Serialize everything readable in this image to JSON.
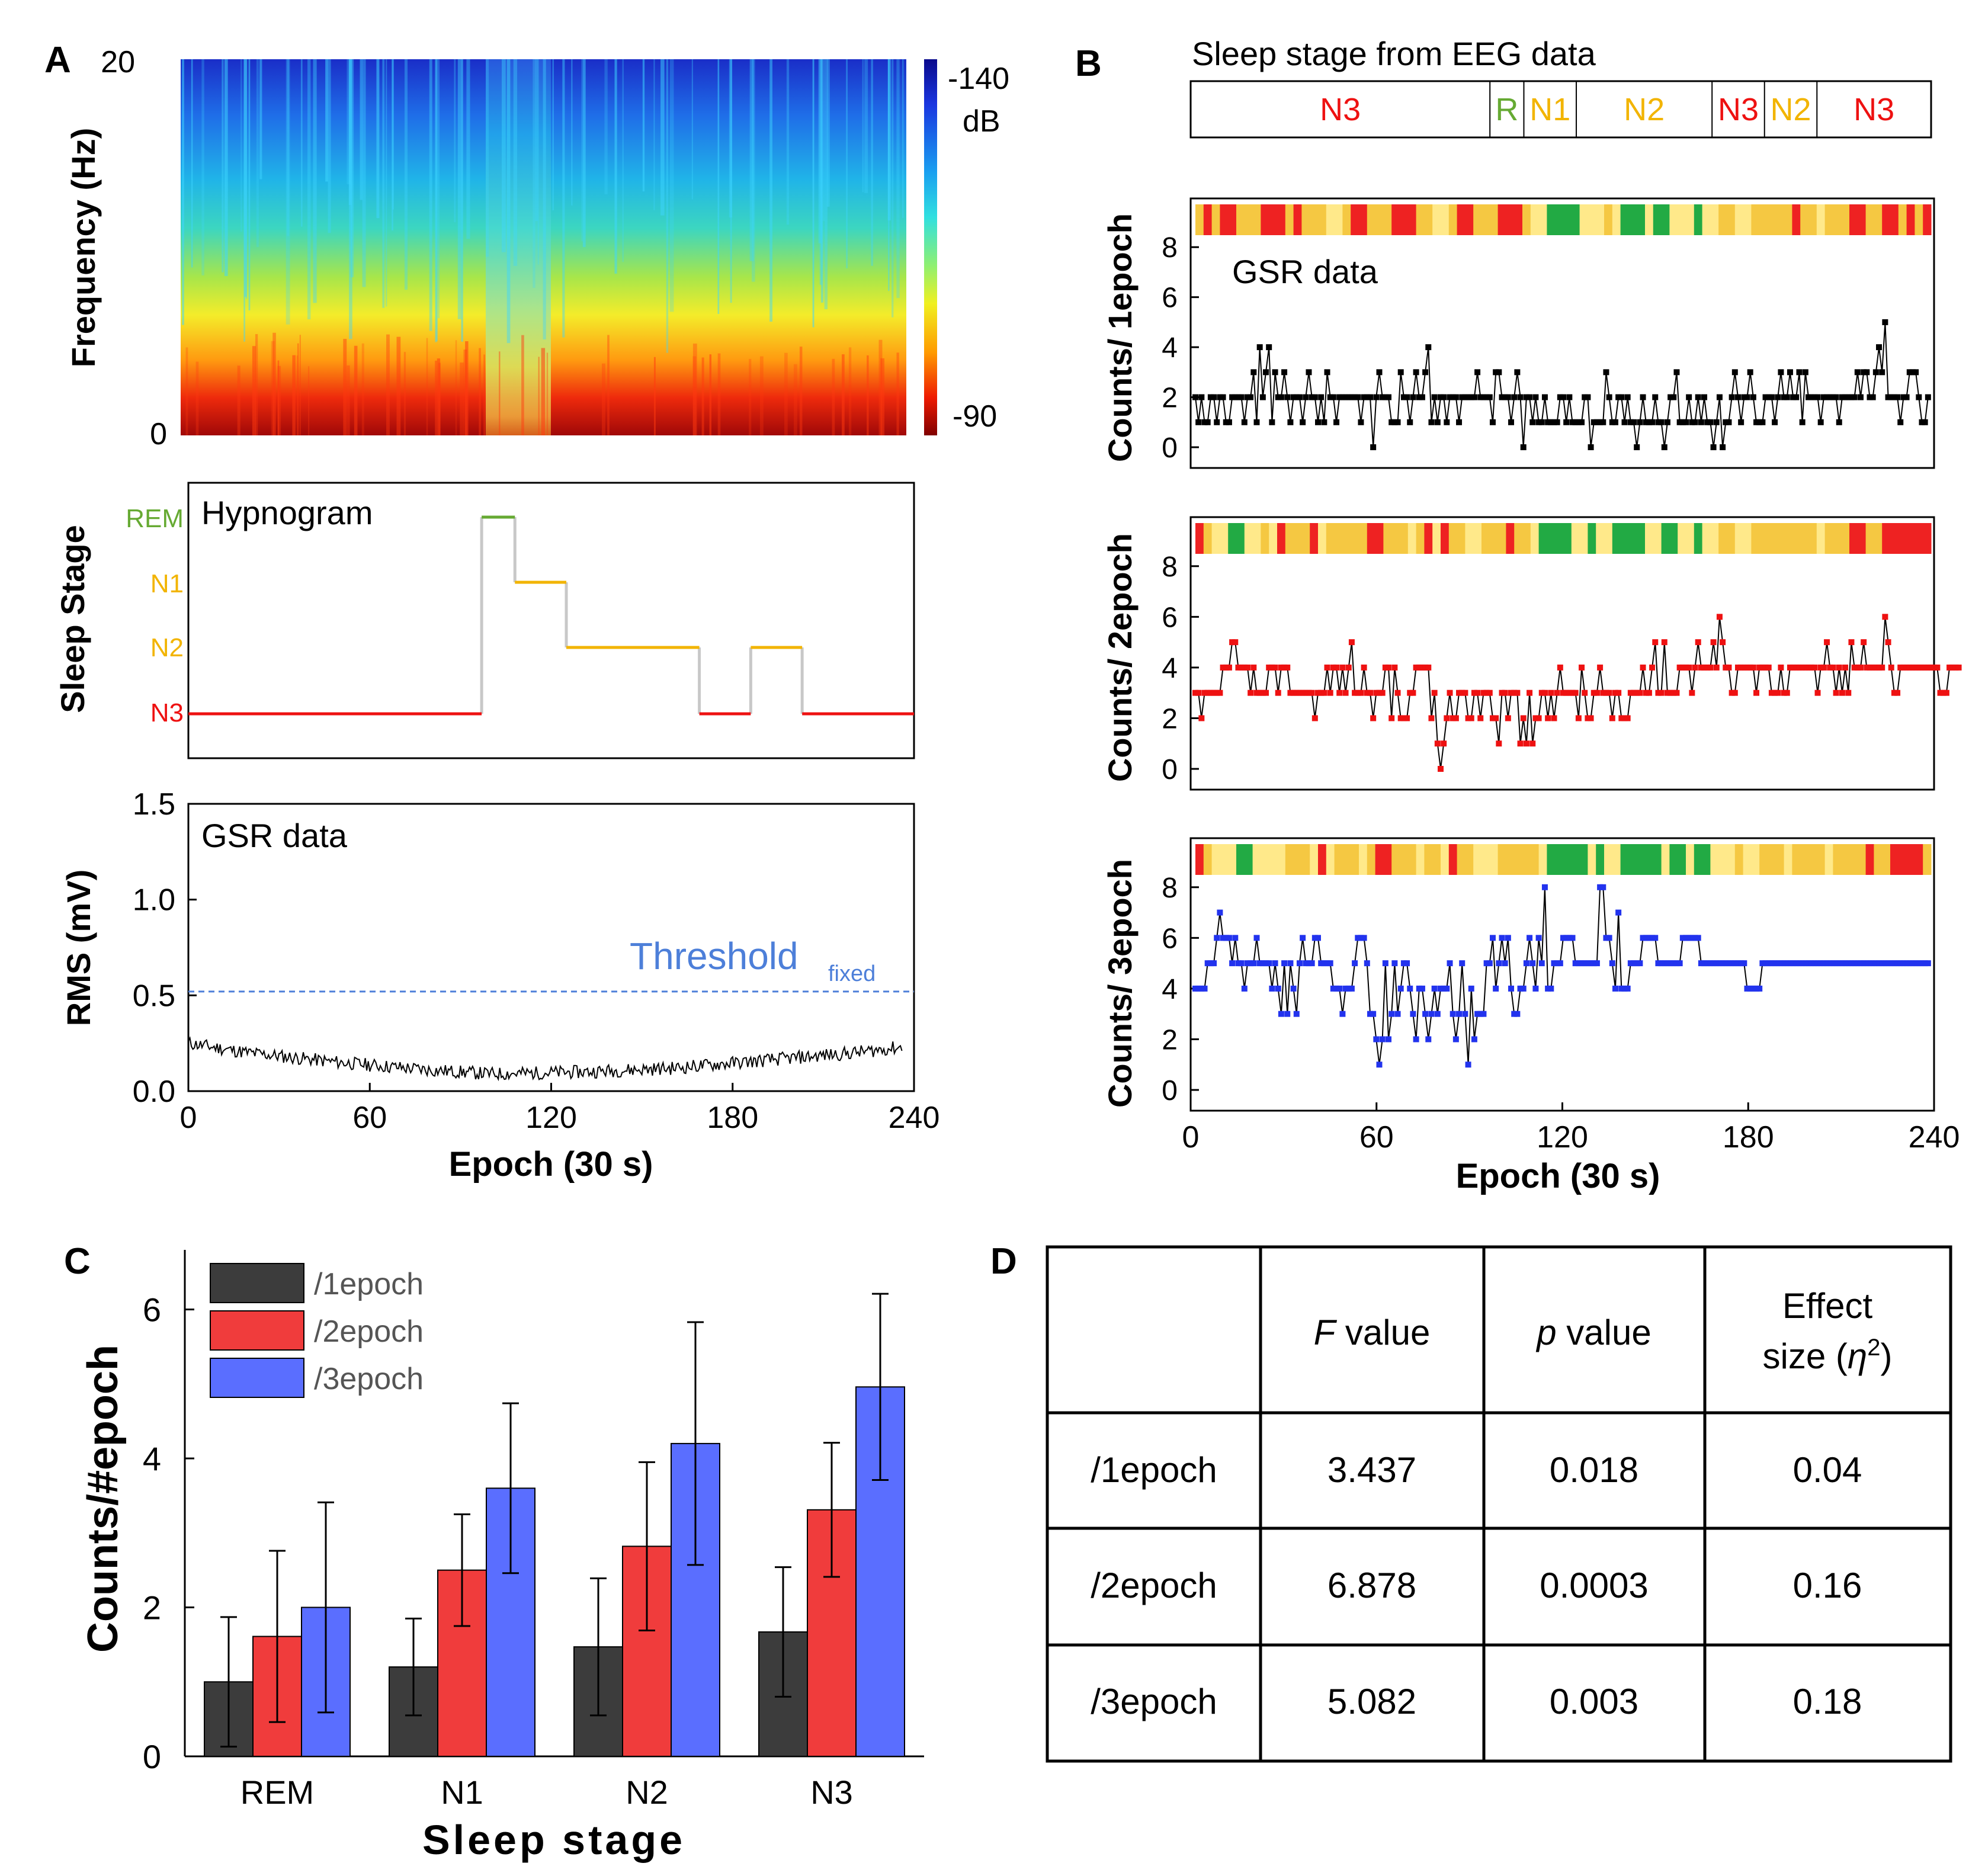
{
  "panel_labels": [
    "A",
    "B",
    "C",
    "D"
  ],
  "colors": {
    "n3": "#ee1111",
    "rem": "#66aa33",
    "n1n2": "#f2b400",
    "gray": "#c8c8c8",
    "black": "#000000",
    "bar1": "#3c3c3c",
    "bar2": "#f03c3c",
    "bar3": "#5a6eff",
    "red_pts": "#ee1111",
    "blue_pts": "#2233ee",
    "threshold": "#4d7fd9"
  },
  "chart_data": [
    {
      "id": "spectrogram",
      "type": "heatmap",
      "ylabel": "Frequency (Hz)",
      "y_ticks": [
        "20",
        "0"
      ],
      "ylim": [
        0,
        20
      ],
      "xlim": [
        0,
        240
      ],
      "colorbar": {
        "top": "-140",
        "unit": "dB",
        "bottom": "-90"
      }
    },
    {
      "id": "hypnogram",
      "type": "line",
      "title": "Hypnogram",
      "ylabel": "Sleep Stage",
      "stage_labels": [
        "REM",
        "N1",
        "N2",
        "N3"
      ],
      "segments": [
        {
          "stage": "N3",
          "start": 0,
          "end": 97
        },
        {
          "stage": "REM",
          "start": 97,
          "end": 108
        },
        {
          "stage": "N1",
          "start": 108,
          "end": 125
        },
        {
          "stage": "N2",
          "start": 125,
          "end": 169
        },
        {
          "stage": "N3",
          "start": 169,
          "end": 186
        },
        {
          "stage": "N2",
          "start": 186,
          "end": 203
        },
        {
          "stage": "N3",
          "start": 203,
          "end": 240
        }
      ]
    },
    {
      "id": "rms",
      "type": "line",
      "title": "GSR data",
      "xlabel": "Epoch (30 s)",
      "ylabel": "RMS (mV)",
      "ylim": [
        0,
        1.5
      ],
      "y_ticks": [
        "0.0",
        "0.5",
        "1.0",
        "1.5"
      ],
      "x_ticks": [
        "0",
        "60",
        "120",
        "180",
        "240"
      ],
      "threshold": {
        "value": 0.52,
        "label": "Threshold",
        "subscript": "fixed"
      },
      "trend": [
        [
          0,
          0.25
        ],
        [
          20,
          0.2
        ],
        [
          50,
          0.15
        ],
        [
          80,
          0.11
        ],
        [
          100,
          0.09
        ],
        [
          130,
          0.1
        ],
        [
          160,
          0.12
        ],
        [
          190,
          0.16
        ],
        [
          220,
          0.2
        ],
        [
          236,
          0.23
        ]
      ]
    },
    {
      "id": "eeg_stage_bar",
      "type": "table",
      "title": "Sleep stage from EEG data",
      "cells": [
        {
          "label": "N3",
          "start": 0,
          "end": 97,
          "color": "#ee1111"
        },
        {
          "label": "R",
          "start": 97,
          "end": 108,
          "color": "#66aa33"
        },
        {
          "label": "N1",
          "start": 108,
          "end": 125,
          "color": "#f2b400"
        },
        {
          "label": "N2",
          "start": 125,
          "end": 169,
          "color": "#f2b400"
        },
        {
          "label": "N3",
          "start": 169,
          "end": 186,
          "color": "#ee1111"
        },
        {
          "label": "N2",
          "start": 186,
          "end": 203,
          "color": "#f2b400"
        },
        {
          "label": "N3",
          "start": 203,
          "end": 240,
          "color": "#ee1111"
        }
      ]
    },
    {
      "id": "counts1",
      "type": "line",
      "title": "GSR data",
      "ylabel": "Counts/ 1epoch",
      "ylim": [
        0,
        9
      ],
      "y_ticks": [
        "0",
        "2",
        "4",
        "6",
        "8"
      ],
      "marker_color": "#000000",
      "values": [
        2,
        1,
        2,
        1,
        1,
        2,
        2,
        1,
        2,
        2,
        1,
        1,
        2,
        2,
        2,
        2,
        1,
        2,
        2,
        3,
        1,
        4,
        2,
        3,
        4,
        1,
        3,
        2,
        2,
        3,
        2,
        1,
        2,
        2,
        2,
        1,
        2,
        3,
        2,
        2,
        1,
        2,
        1,
        3,
        2,
        2,
        1,
        2,
        2,
        2,
        2,
        2,
        2,
        2,
        1,
        2,
        2,
        2,
        0,
        2,
        3,
        2,
        2,
        2,
        1,
        1,
        1,
        3,
        2,
        2,
        1,
        2,
        3,
        2,
        2,
        3,
        4,
        1,
        2,
        1,
        2,
        2,
        1,
        2,
        2,
        2,
        1,
        2,
        2,
        2,
        2,
        2,
        3,
        2,
        2,
        2,
        2,
        1,
        3,
        3,
        2,
        2,
        2,
        1,
        2,
        3,
        2,
        0,
        2,
        2,
        1,
        2,
        1,
        1,
        2,
        1,
        1,
        1,
        1,
        2,
        2,
        1,
        2,
        1,
        1,
        1,
        1,
        2,
        2,
        0,
        1,
        1,
        1,
        1,
        3,
        2,
        1,
        1,
        2,
        2,
        1,
        2,
        1,
        1,
        0,
        1,
        2,
        1,
        1,
        1,
        2,
        1,
        1,
        0,
        1,
        2,
        2,
        3,
        1,
        1,
        1,
        2,
        1,
        1,
        2,
        1,
        2,
        1,
        1,
        0,
        1,
        2,
        0,
        1,
        1,
        2,
        3,
        2,
        1,
        2,
        2,
        3,
        2,
        1,
        1,
        1,
        2,
        2,
        2,
        1,
        2,
        3,
        2,
        2,
        3,
        2,
        2,
        3,
        1,
        3,
        2,
        2,
        2,
        2,
        1,
        2,
        2,
        2,
        2,
        2,
        1,
        2,
        2,
        2,
        2,
        2,
        3,
        2,
        3,
        3,
        2,
        2,
        3,
        4,
        3,
        5,
        2,
        2,
        2,
        2,
        1,
        2,
        2,
        3,
        3,
        3,
        2,
        1,
        1,
        2
      ],
      "heat_values": [
        0.25,
        0.2,
        0.35,
        0.22,
        0.18,
        0.3,
        0.4,
        0.28,
        0.22,
        0.18,
        0.15,
        0.3,
        0.1,
        0.28,
        0.35,
        0.4,
        0.45,
        0.5,
        0.3,
        0.2,
        0.18,
        0.3,
        0.25,
        0.4,
        0.2,
        0.15,
        0.22,
        0.35,
        0.28,
        0.45,
        0.5,
        0.3,
        0.22,
        0.18,
        0.3,
        0.4,
        0.28,
        0.22,
        0.18,
        0.15,
        0.3,
        0.55,
        0.62,
        0.7,
        0.82,
        0.95,
        0.7,
        0.55,
        0.62,
        0.5,
        0.4,
        0.6,
        0.72,
        0.95,
        0.8,
        0.6,
        0.7,
        0.85,
        0.6,
        0.55,
        0.62,
        0.78,
        0.55,
        0.45,
        0.38,
        0.3,
        0.48,
        0.55,
        0.4,
        0.28,
        0.3,
        0.38,
        0.25,
        0.2,
        0.3,
        0.42,
        0.55,
        0.35,
        0.28,
        0.4,
        0.2,
        0.15,
        0.25,
        0.3,
        0.2,
        0.18,
        0.28,
        0.22,
        0.3,
        0.24
      ],
      "heat_colors": [
        "#ee2222",
        "#f5c842",
        "#ffe98a",
        "#22aa44"
      ]
    },
    {
      "id": "counts2",
      "type": "line",
      "ylabel": "Counts/ 2epoch",
      "ylim": [
        0,
        9
      ],
      "y_ticks": [
        "0",
        "2",
        "4",
        "6",
        "8"
      ],
      "marker_color": "#ee1111",
      "values": [
        3,
        3,
        2,
        3,
        3,
        3,
        3,
        3,
        3,
        4,
        4,
        4,
        5,
        5,
        4,
        4,
        4,
        4,
        3,
        4,
        3,
        3,
        3,
        3,
        4,
        4,
        4,
        3,
        4,
        4,
        4,
        3,
        3,
        3,
        3,
        3,
        3,
        3,
        3,
        2,
        3,
        3,
        3,
        4,
        3,
        4,
        4,
        3,
        4,
        3,
        4,
        5,
        3,
        3,
        3,
        4,
        3,
        3,
        2,
        3,
        3,
        3,
        4,
        4,
        2,
        4,
        3,
        2,
        2,
        2,
        3,
        3,
        4,
        4,
        4,
        4,
        4,
        2,
        3,
        1,
        0,
        1,
        2,
        3,
        2,
        2,
        3,
        3,
        3,
        2,
        2,
        3,
        3,
        2,
        3,
        3,
        3,
        2,
        2,
        1,
        3,
        3,
        2,
        3,
        3,
        3,
        1,
        2,
        1,
        3,
        1,
        2,
        2,
        3,
        3,
        2,
        3,
        2,
        3,
        4,
        3,
        3,
        3,
        3,
        3,
        2,
        4,
        3,
        2,
        2,
        3,
        3,
        4,
        3,
        3,
        3,
        2,
        3,
        3,
        2,
        2,
        2,
        3,
        3,
        3,
        3,
        4,
        3,
        3,
        4,
        5,
        3,
        3,
        5,
        3,
        3,
        3,
        3,
        4,
        4,
        4,
        4,
        3,
        4,
        5,
        4,
        4,
        4,
        4,
        5,
        4,
        6,
        5,
        4,
        4,
        3,
        3,
        4,
        4,
        4,
        4,
        4,
        4,
        3,
        4,
        4,
        4,
        4,
        3,
        3,
        3,
        4,
        3,
        3,
        4,
        4,
        4,
        4,
        4,
        4,
        4,
        4,
        4,
        3,
        4,
        4,
        5,
        4,
        4,
        3,
        4,
        3,
        4,
        3,
        5,
        4,
        4,
        4,
        5,
        4,
        4,
        4,
        4,
        4,
        4,
        6,
        5,
        4,
        3,
        3,
        4,
        4,
        4,
        4,
        4,
        4,
        4,
        4,
        4,
        4,
        4,
        4,
        4,
        3,
        3,
        3,
        4,
        4,
        4,
        4
      ],
      "heat_values": [
        0.15,
        0.3,
        0.45,
        0.55,
        0.9,
        0.85,
        0.6,
        0.5,
        0.4,
        0.6,
        0.2,
        0.3,
        0.25,
        0.35,
        0.2,
        0.55,
        0.35,
        0.3,
        0.25,
        0.4,
        0.3,
        0.2,
        0.15,
        0.25,
        0.3,
        0.4,
        0.45,
        0.3,
        0.2,
        0.5,
        0.15,
        0.35,
        0.28,
        0.45,
        0.5,
        0.4,
        0.3,
        0.25,
        0.2,
        0.35,
        0.3,
        0.6,
        0.7,
        0.75,
        0.8,
        0.9,
        0.65,
        0.5,
        0.7,
        0.6,
        0.45,
        0.7,
        0.8,
        0.9,
        0.75,
        0.65,
        0.6,
        0.75,
        0.7,
        0.55,
        0.65,
        0.7,
        0.6,
        0.45,
        0.4,
        0.3,
        0.5,
        0.6,
        0.35,
        0.3,
        0.25,
        0.4,
        0.35,
        0.28,
        0.3,
        0.35,
        0.45,
        0.3,
        0.25,
        0.35,
        0.2,
        0.12,
        0.25,
        0.3,
        0.18,
        0.1,
        0.15,
        0.08,
        0.2,
        0.15
      ],
      "heat_colors": [
        "#ee2222",
        "#f5c842",
        "#ffe98a",
        "#22aa44"
      ]
    },
    {
      "id": "counts3",
      "type": "line",
      "xlabel": "Epoch (30 s)",
      "ylabel": "Counts/ 3epoch",
      "ylim": [
        0,
        9
      ],
      "y_ticks": [
        "0",
        "2",
        "4",
        "6",
        "8"
      ],
      "x_ticks": [
        "0",
        "60",
        "120",
        "180",
        "240"
      ],
      "marker_color": "#2233ee",
      "values": [
        4,
        4,
        4,
        4,
        5,
        5,
        5,
        6,
        7,
        6,
        6,
        6,
        5,
        6,
        5,
        5,
        4,
        5,
        5,
        5,
        6,
        5,
        5,
        5,
        5,
        4,
        5,
        4,
        3,
        5,
        3,
        5,
        4,
        3,
        5,
        6,
        5,
        5,
        5,
        6,
        6,
        5,
        5,
        5,
        5,
        4,
        4,
        4,
        3,
        4,
        4,
        4,
        5,
        6,
        6,
        6,
        5,
        3,
        3,
        2,
        1,
        2,
        5,
        2,
        3,
        5,
        3,
        4,
        5,
        5,
        4,
        3,
        2,
        4,
        4,
        3,
        2,
        3,
        4,
        3,
        4,
        4,
        4,
        5,
        3,
        2,
        3,
        5,
        3,
        1,
        4,
        2,
        3,
        3,
        3,
        5,
        5,
        6,
        4,
        5,
        6,
        5,
        6,
        4,
        3,
        3,
        4,
        4,
        5,
        6,
        5,
        4,
        6,
        5,
        8,
        4,
        4,
        5,
        5,
        5,
        6,
        6,
        6,
        6,
        5,
        5,
        5,
        5,
        5,
        5,
        5,
        5,
        8,
        8,
        6,
        6,
        5,
        4,
        7,
        4,
        4,
        4,
        5,
        5,
        5,
        5,
        6,
        6,
        6,
        6,
        6,
        5,
        5,
        5,
        5,
        5,
        5,
        5,
        5,
        6,
        6,
        6,
        6,
        6,
        6,
        5,
        5,
        5,
        5,
        5,
        5,
        5,
        5,
        5,
        5,
        5,
        5,
        5,
        5,
        5,
        4,
        4,
        4,
        4,
        4,
        5,
        5,
        5,
        5,
        5,
        5,
        5,
        5,
        5,
        5,
        5,
        5,
        5,
        5,
        5,
        5,
        5,
        5,
        5,
        5,
        5,
        5,
        5,
        5,
        5,
        5,
        5,
        5,
        5,
        5,
        5,
        5,
        5,
        5,
        5,
        5,
        5,
        5,
        5,
        5,
        5,
        5,
        5,
        5,
        5,
        5,
        5,
        5,
        5,
        5,
        5,
        5,
        5,
        5,
        5
      ],
      "heat_values": [
        0.1,
        0.3,
        0.45,
        0.5,
        0.55,
        0.92,
        0.85,
        0.6,
        0.5,
        0.45,
        0.6,
        0.25,
        0.3,
        0.4,
        0.45,
        0.2,
        0.55,
        0.4,
        0.35,
        0.3,
        0.45,
        0.3,
        0.2,
        0.2,
        0.3,
        0.35,
        0.4,
        0.45,
        0.3,
        0.25,
        0.5,
        0.15,
        0.4,
        0.3,
        0.45,
        0.55,
        0.5,
        0.35,
        0.3,
        0.25,
        0.4,
        0.3,
        0.65,
        0.75,
        0.8,
        0.9,
        0.95,
        0.7,
        0.55,
        0.75,
        0.65,
        0.5,
        0.75,
        0.85,
        0.95,
        0.8,
        0.7,
        0.65,
        0.8,
        0.75,
        0.6,
        0.7,
        0.75,
        0.65,
        0.5,
        0.45,
        0.35,
        0.55,
        0.65,
        0.4,
        0.35,
        0.3,
        0.45,
        0.4,
        0.3,
        0.35,
        0.4,
        0.5,
        0.35,
        0.3,
        0.4,
        0.25,
        0.1,
        0.25,
        0.35,
        0.2,
        0.05,
        0.08,
        0.12,
        0.25
      ],
      "heat_colors": [
        "#ee2222",
        "#f5c842",
        "#ffe98a",
        "#22aa44"
      ]
    },
    {
      "id": "bars",
      "type": "bar",
      "xlabel": "Sleep stage",
      "ylabel": "Counts/#epoch",
      "ylim": [
        0,
        6.8
      ],
      "y_ticks": [
        "0",
        "2",
        "4",
        "6"
      ],
      "categories": [
        "REM",
        "N1",
        "N2",
        "N3"
      ],
      "series": [
        {
          "name": "/1epoch",
          "values": [
            1.0,
            1.2,
            1.47,
            1.67
          ],
          "errors": [
            0.87,
            0.65,
            0.92,
            0.87
          ]
        },
        {
          "name": "/2epoch",
          "values": [
            1.61,
            2.5,
            2.82,
            3.31
          ],
          "errors": [
            1.15,
            0.75,
            1.13,
            0.9
          ]
        },
        {
          "name": "/3epoch",
          "values": [
            2.0,
            3.6,
            4.2,
            4.96
          ],
          "errors": [
            1.41,
            1.14,
            1.63,
            1.25
          ]
        }
      ]
    }
  ],
  "table": {
    "header": {
      "c1": "",
      "f_italic": "F",
      "f_rest": " value",
      "p_italic": "p",
      "p_rest": " value",
      "effect_line1": "Effect",
      "effect_line2a": "size (",
      "effect_eta": "η",
      "effect_sup": "2",
      "effect_line2b": ")"
    },
    "rows": [
      {
        "name": "/1epoch",
        "f": "3.437",
        "p": "0.018",
        "eff": "0.04"
      },
      {
        "name": "/2epoch",
        "f": "6.878",
        "p": "0.0003",
        "eff": "0.16"
      },
      {
        "name": "/3epoch",
        "f": "5.082",
        "p": "0.003",
        "eff": "0.18"
      }
    ]
  }
}
